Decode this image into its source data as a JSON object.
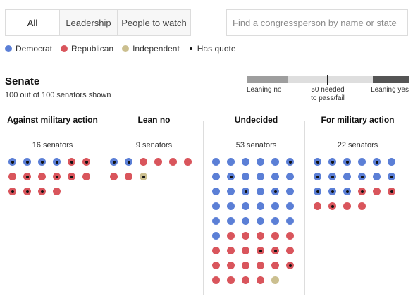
{
  "tabs": [
    {
      "label": "All",
      "active": true
    },
    {
      "label": "Leadership",
      "active": false
    },
    {
      "label": "People to watch",
      "active": false
    }
  ],
  "search": {
    "placeholder": "Find a congressperson by name or state"
  },
  "legend": {
    "democrat": "Democrat",
    "republican": "Republican",
    "independent": "Independent",
    "has_quote": "Has quote"
  },
  "colors": {
    "democrat": "#5b7fd6",
    "republican": "#d9555c",
    "independent": "#cbbf8f",
    "quote": "#111111"
  },
  "chamber": {
    "title": "Senate",
    "subtitle": "100 out of 100 senators shown"
  },
  "scale": {
    "leaning_no": "Leaning no",
    "needed_line1": "50 needed",
    "needed_line2": "to pass/fail",
    "leaning_yes": "Leaning yes"
  },
  "columns": [
    {
      "title": "Against military action",
      "count": "16 senators",
      "dots": [
        {
          "party": "D",
          "quote": true
        },
        {
          "party": "D",
          "quote": true
        },
        {
          "party": "D",
          "quote": true
        },
        {
          "party": "D",
          "quote": true
        },
        {
          "party": "R",
          "quote": true
        },
        {
          "party": "R",
          "quote": true
        },
        {
          "party": "R",
          "quote": false
        },
        {
          "party": "R",
          "quote": true
        },
        {
          "party": "R",
          "quote": false
        },
        {
          "party": "R",
          "quote": true
        },
        {
          "party": "R",
          "quote": true
        },
        {
          "party": "R",
          "quote": false
        },
        {
          "party": "R",
          "quote": true
        },
        {
          "party": "R",
          "quote": true
        },
        {
          "party": "R",
          "quote": true
        },
        {
          "party": "R",
          "quote": false
        }
      ]
    },
    {
      "title": "Lean no",
      "count": "9 senators",
      "dots": [
        {
          "party": "D",
          "quote": true
        },
        {
          "party": "D",
          "quote": true
        },
        {
          "party": "R",
          "quote": false
        },
        {
          "party": "R",
          "quote": false
        },
        {
          "party": "R",
          "quote": false
        },
        {
          "party": "R",
          "quote": false
        },
        {
          "party": "R",
          "quote": false
        },
        {
          "party": "R",
          "quote": false
        },
        {
          "party": "I",
          "quote": true
        }
      ]
    },
    {
      "title": "Undecided",
      "count": "53 senators",
      "dots": [
        {
          "party": "D",
          "quote": false
        },
        {
          "party": "D",
          "quote": false
        },
        {
          "party": "D",
          "quote": false
        },
        {
          "party": "D",
          "quote": false
        },
        {
          "party": "D",
          "quote": false
        },
        {
          "party": "D",
          "quote": true
        },
        {
          "party": "D",
          "quote": false
        },
        {
          "party": "D",
          "quote": true
        },
        {
          "party": "D",
          "quote": false
        },
        {
          "party": "D",
          "quote": false
        },
        {
          "party": "D",
          "quote": false
        },
        {
          "party": "D",
          "quote": false
        },
        {
          "party": "D",
          "quote": false
        },
        {
          "party": "D",
          "quote": false
        },
        {
          "party": "D",
          "quote": true
        },
        {
          "party": "D",
          "quote": false
        },
        {
          "party": "D",
          "quote": true
        },
        {
          "party": "D",
          "quote": false
        },
        {
          "party": "D",
          "quote": false
        },
        {
          "party": "D",
          "quote": false
        },
        {
          "party": "D",
          "quote": false
        },
        {
          "party": "D",
          "quote": false
        },
        {
          "party": "D",
          "quote": false
        },
        {
          "party": "D",
          "quote": false
        },
        {
          "party": "D",
          "quote": false
        },
        {
          "party": "D",
          "quote": false
        },
        {
          "party": "D",
          "quote": false
        },
        {
          "party": "D",
          "quote": false
        },
        {
          "party": "D",
          "quote": false
        },
        {
          "party": "D",
          "quote": false
        },
        {
          "party": "D",
          "quote": false
        },
        {
          "party": "R",
          "quote": false
        },
        {
          "party": "R",
          "quote": false
        },
        {
          "party": "R",
          "quote": false
        },
        {
          "party": "R",
          "quote": false
        },
        {
          "party": "R",
          "quote": false
        },
        {
          "party": "R",
          "quote": false
        },
        {
          "party": "R",
          "quote": false
        },
        {
          "party": "R",
          "quote": false
        },
        {
          "party": "R",
          "quote": true
        },
        {
          "party": "R",
          "quote": true
        },
        {
          "party": "R",
          "quote": false
        },
        {
          "party": "R",
          "quote": false
        },
        {
          "party": "R",
          "quote": false
        },
        {
          "party": "R",
          "quote": false
        },
        {
          "party": "R",
          "quote": false
        },
        {
          "party": "R",
          "quote": false
        },
        {
          "party": "R",
          "quote": true
        },
        {
          "party": "R",
          "quote": false
        },
        {
          "party": "R",
          "quote": false
        },
        {
          "party": "R",
          "quote": false
        },
        {
          "party": "R",
          "quote": false
        },
        {
          "party": "I",
          "quote": false
        }
      ]
    },
    {
      "title": "For military action",
      "count": "22 senators",
      "dots": [
        {
          "party": "D",
          "quote": true
        },
        {
          "party": "D",
          "quote": true
        },
        {
          "party": "D",
          "quote": true
        },
        {
          "party": "D",
          "quote": false
        },
        {
          "party": "D",
          "quote": true
        },
        {
          "party": "D",
          "quote": false
        },
        {
          "party": "D",
          "quote": true
        },
        {
          "party": "D",
          "quote": true
        },
        {
          "party": "D",
          "quote": false
        },
        {
          "party": "D",
          "quote": true
        },
        {
          "party": "D",
          "quote": false
        },
        {
          "party": "D",
          "quote": true
        },
        {
          "party": "D",
          "quote": true
        },
        {
          "party": "D",
          "quote": true
        },
        {
          "party": "D",
          "quote": true
        },
        {
          "party": "R",
          "quote": true
        },
        {
          "party": "R",
          "quote": false
        },
        {
          "party": "R",
          "quote": true
        },
        {
          "party": "R",
          "quote": false
        },
        {
          "party": "R",
          "quote": true
        },
        {
          "party": "R",
          "quote": false
        },
        {
          "party": "R",
          "quote": false
        }
      ]
    }
  ]
}
